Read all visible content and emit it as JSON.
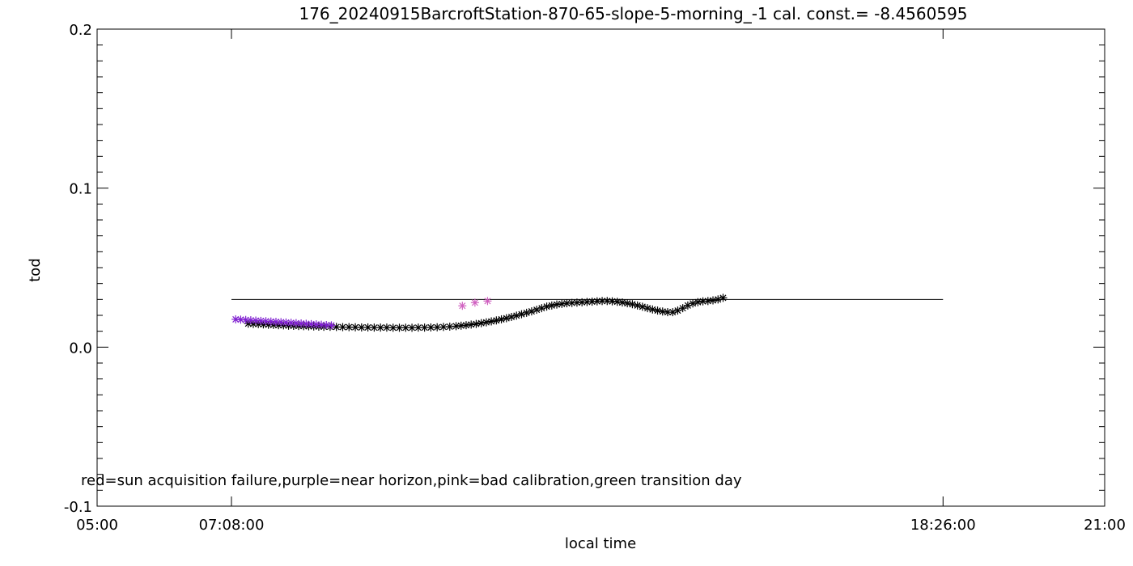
{
  "chart_data": {
    "type": "scatter",
    "title": "176_20240915BarcroftStation-870-65-slope-5-morning_-1 cal. const.= -8.4560595",
    "xlabel": "local time",
    "ylabel": "tod",
    "x_tick_labels": [
      "05:00",
      "07:08:00",
      "18:26:00",
      "21:00"
    ],
    "x_tick_values_hours": [
      5.0,
      7.1333,
      18.4333,
      21.0
    ],
    "xlim_hours": [
      5.0,
      21.0
    ],
    "ylim": [
      -0.1,
      0.2
    ],
    "y_tick_labels": [
      "-0.1",
      "0.0",
      "0.1",
      "0.2"
    ],
    "y_tick_values": [
      -0.1,
      0.0,
      0.1,
      0.2
    ],
    "legend_text": "red=sun acquisition failure,purple=near horizon,pink=bad calibration,green transition day",
    "reference_line": {
      "x_start_hours": 7.1333,
      "x_end_hours": 18.4333,
      "y": 0.03
    },
    "colors": {
      "axis": "#000000",
      "black_points": "#000000",
      "purple_points": "#7f1fd0",
      "pink_points": "#d060c0"
    },
    "series": [
      {
        "name": "black",
        "color": "#000000",
        "points": [
          [
            7.4,
            0.0148
          ],
          [
            7.48,
            0.0146
          ],
          [
            7.56,
            0.0145
          ],
          [
            7.64,
            0.0143
          ],
          [
            7.72,
            0.0141
          ],
          [
            7.8,
            0.014
          ],
          [
            7.88,
            0.0138
          ],
          [
            7.96,
            0.0137
          ],
          [
            8.04,
            0.0135
          ],
          [
            8.12,
            0.0134
          ],
          [
            8.2,
            0.0133
          ],
          [
            8.28,
            0.0132
          ],
          [
            8.36,
            0.0131
          ],
          [
            8.44,
            0.013
          ],
          [
            8.52,
            0.0129
          ],
          [
            8.6,
            0.0128
          ],
          [
            8.7,
            0.0128
          ],
          [
            8.8,
            0.0127
          ],
          [
            8.9,
            0.0126
          ],
          [
            9.0,
            0.0126
          ],
          [
            9.1,
            0.0125
          ],
          [
            9.2,
            0.0124
          ],
          [
            9.3,
            0.0124
          ],
          [
            9.4,
            0.0123
          ],
          [
            9.5,
            0.0123
          ],
          [
            9.6,
            0.0123
          ],
          [
            9.7,
            0.0122
          ],
          [
            9.8,
            0.0122
          ],
          [
            9.9,
            0.0122
          ],
          [
            10.0,
            0.0122
          ],
          [
            10.1,
            0.0123
          ],
          [
            10.2,
            0.0123
          ],
          [
            10.3,
            0.0124
          ],
          [
            10.4,
            0.0125
          ],
          [
            10.5,
            0.0127
          ],
          [
            10.6,
            0.0129
          ],
          [
            10.7,
            0.0132
          ],
          [
            10.78,
            0.0135
          ],
          [
            10.86,
            0.0138
          ],
          [
            10.94,
            0.0142
          ],
          [
            11.02,
            0.0146
          ],
          [
            11.1,
            0.0151
          ],
          [
            11.18,
            0.0156
          ],
          [
            11.26,
            0.0162
          ],
          [
            11.34,
            0.0168
          ],
          [
            11.42,
            0.0175
          ],
          [
            11.5,
            0.0182
          ],
          [
            11.58,
            0.019
          ],
          [
            11.66,
            0.0198
          ],
          [
            11.74,
            0.0207
          ],
          [
            11.82,
            0.0216
          ],
          [
            11.9,
            0.0225
          ],
          [
            11.98,
            0.0235
          ],
          [
            12.06,
            0.0245
          ],
          [
            12.14,
            0.0255
          ],
          [
            12.22,
            0.0262
          ],
          [
            12.3,
            0.0268
          ],
          [
            12.38,
            0.0272
          ],
          [
            12.46,
            0.0276
          ],
          [
            12.54,
            0.0278
          ],
          [
            12.62,
            0.028
          ],
          [
            12.7,
            0.0282
          ],
          [
            12.78,
            0.0284
          ],
          [
            12.86,
            0.0286
          ],
          [
            12.94,
            0.0288
          ],
          [
            13.02,
            0.029
          ],
          [
            13.1,
            0.029
          ],
          [
            13.18,
            0.0288
          ],
          [
            13.26,
            0.0285
          ],
          [
            13.34,
            0.0281
          ],
          [
            13.42,
            0.0276
          ],
          [
            13.5,
            0.027
          ],
          [
            13.58,
            0.0262
          ],
          [
            13.66,
            0.0254
          ],
          [
            13.74,
            0.0245
          ],
          [
            13.82,
            0.0237
          ],
          [
            13.9,
            0.023
          ],
          [
            13.98,
            0.0224
          ],
          [
            14.06,
            0.022
          ],
          [
            14.14,
            0.022
          ],
          [
            14.22,
            0.023
          ],
          [
            14.3,
            0.0245
          ],
          [
            14.38,
            0.0262
          ],
          [
            14.46,
            0.0275
          ],
          [
            14.54,
            0.0283
          ],
          [
            14.62,
            0.0288
          ],
          [
            14.7,
            0.029
          ],
          [
            14.78,
            0.0294
          ],
          [
            14.86,
            0.03
          ],
          [
            14.94,
            0.031
          ]
        ]
      },
      {
        "name": "purple",
        "color": "#7f1fd0",
        "points": [
          [
            7.2,
            0.0175
          ],
          [
            7.28,
            0.0173
          ],
          [
            7.36,
            0.0171
          ],
          [
            7.44,
            0.0169
          ],
          [
            7.52,
            0.0167
          ],
          [
            7.6,
            0.0165
          ],
          [
            7.68,
            0.0163
          ],
          [
            7.76,
            0.0161
          ],
          [
            7.84,
            0.0159
          ],
          [
            7.92,
            0.0157
          ],
          [
            8.0,
            0.0155
          ],
          [
            8.08,
            0.0153
          ],
          [
            8.16,
            0.0151
          ],
          [
            8.24,
            0.0149
          ],
          [
            8.32,
            0.0147
          ],
          [
            8.4,
            0.0145
          ],
          [
            8.48,
            0.0143
          ],
          [
            8.56,
            0.0141
          ],
          [
            8.64,
            0.0139
          ],
          [
            8.72,
            0.0137
          ]
        ]
      },
      {
        "name": "pink",
        "color": "#d060c0",
        "points": [
          [
            10.8,
            0.026
          ],
          [
            11.0,
            0.028
          ],
          [
            11.2,
            0.029
          ]
        ]
      }
    ]
  }
}
